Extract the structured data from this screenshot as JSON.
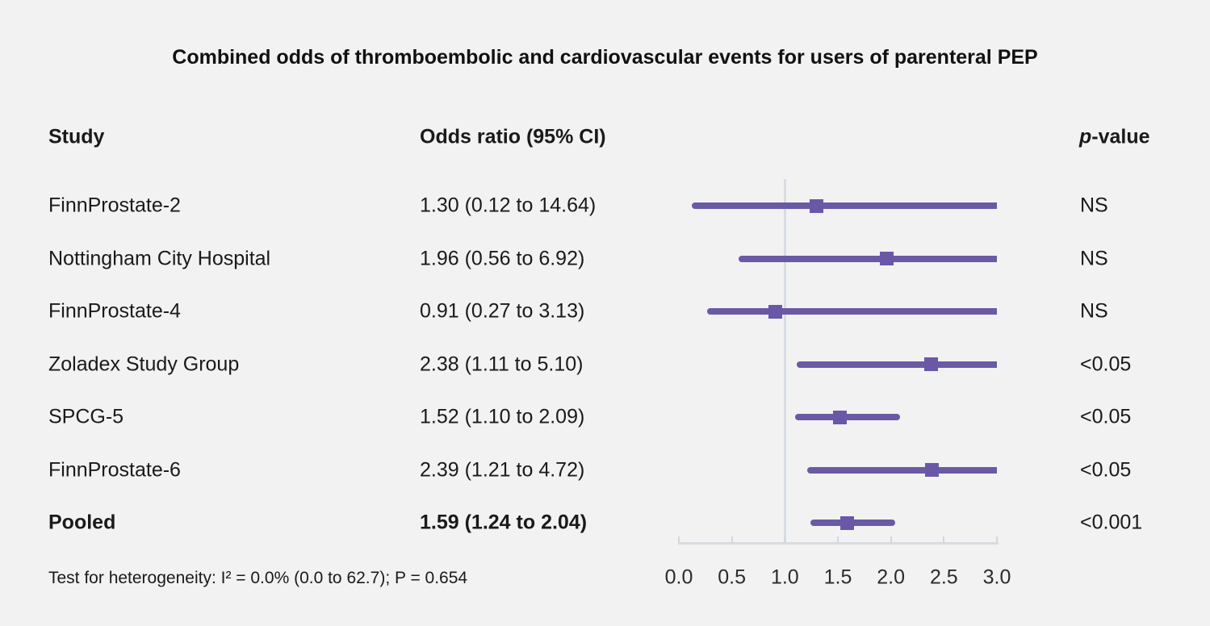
{
  "title": "Combined odds of thromboembolic and cardiovascular events for users of parenteral PEP",
  "columns": {
    "study": "Study",
    "odds_ratio": "Odds ratio (95% CI)",
    "p_italic": "p",
    "p_rest": "-value"
  },
  "footer": {
    "heterogeneity": "Test for heterogeneity: I² = 0.0% (0.0 to 62.7); P = 0.654"
  },
  "colors": {
    "background": "#f2f2f2",
    "text": "#1a1a1a",
    "bar": "#6a5aa5",
    "marker": "#6b57a8",
    "refline": "#d8dde3",
    "axis": "#d9dce1",
    "tick": "#d4d7db"
  },
  "chart_data": {
    "type": "forest",
    "title": "Combined odds of thromboembolic and cardiovascular events for users of parenteral PEP",
    "xlim": [
      0.0,
      3.0
    ],
    "x_ticks": [
      0.0,
      0.5,
      1.0,
      1.5,
      2.0,
      2.5,
      3.0
    ],
    "x_tick_labels": [
      "0.0",
      "0.5",
      "1.0",
      "1.5",
      "2.0",
      "2.5",
      "3.0"
    ],
    "reference_line_x": 1.0,
    "grid": false,
    "rows": [
      {
        "study": "FinnProstate-2",
        "or_label": "1.30 (0.12 to 14.64)",
        "or": 1.3,
        "ci_low": 0.12,
        "ci_high": 14.64,
        "p": "NS",
        "bold": false
      },
      {
        "study": "Nottingham City Hospital",
        "or_label": "1.96 (0.56 to 6.92)",
        "or": 1.96,
        "ci_low": 0.56,
        "ci_high": 6.92,
        "p": "NS",
        "bold": false
      },
      {
        "study": "FinnProstate-4",
        "or_label": "0.91 (0.27 to 3.13)",
        "or": 0.91,
        "ci_low": 0.27,
        "ci_high": 3.13,
        "p": "NS",
        "bold": false
      },
      {
        "study": "Zoladex Study Group",
        "or_label": "2.38 (1.11 to 5.10)",
        "or": 2.38,
        "ci_low": 1.11,
        "ci_high": 5.1,
        "p": "<0.05",
        "bold": false
      },
      {
        "study": "SPCG-5",
        "or_label": "1.52 (1.10 to 2.09)",
        "or": 1.52,
        "ci_low": 1.1,
        "ci_high": 2.09,
        "p": "<0.05",
        "bold": false
      },
      {
        "study": "FinnProstate-6",
        "or_label": "2.39 (1.21 to 4.72)",
        "or": 2.39,
        "ci_low": 1.21,
        "ci_high": 4.72,
        "p": "<0.05",
        "bold": false
      },
      {
        "study": "Pooled",
        "or_label": "1.59 (1.24 to 2.04)",
        "or": 1.59,
        "ci_low": 1.24,
        "ci_high": 2.04,
        "p": "<0.001",
        "bold": true
      }
    ]
  }
}
